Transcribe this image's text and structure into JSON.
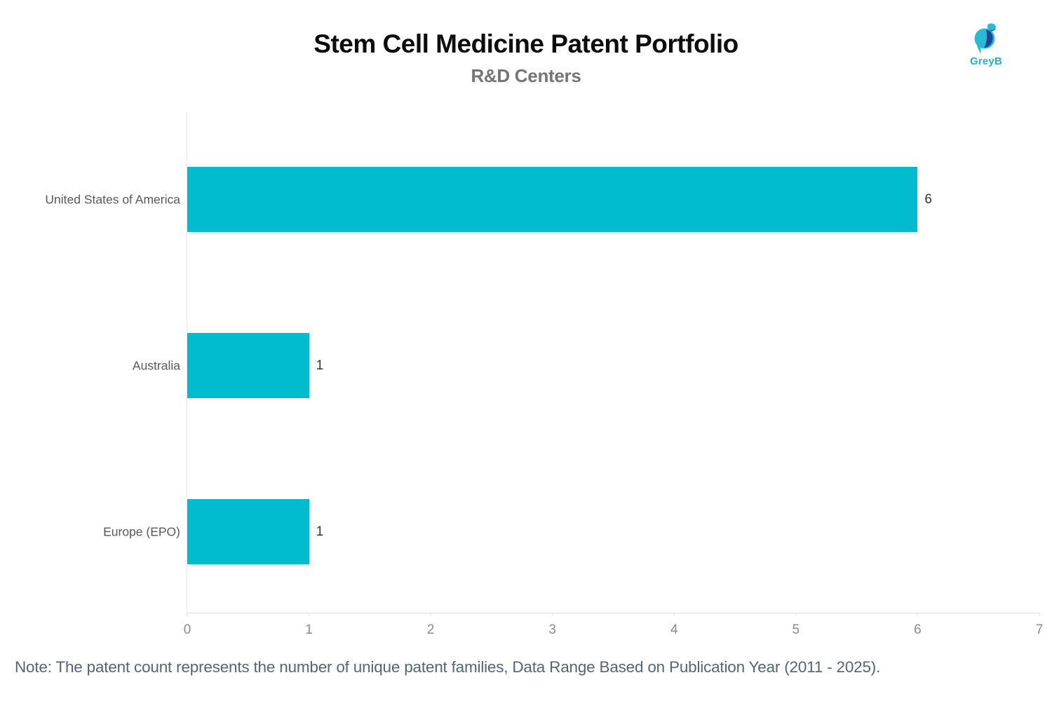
{
  "header": {
    "title": "Stem Cell Medicine Patent Portfolio",
    "subtitle": "R&D Centers"
  },
  "logo": {
    "label": "GreyB",
    "teal": "#27bcd4",
    "navy": "#1f4693",
    "text_color": "#2ab0c9"
  },
  "chart_data": {
    "type": "bar",
    "orientation": "horizontal",
    "title": "Stem Cell Medicine Patent Portfolio",
    "subtitle": "R&D Centers",
    "categories": [
      "United States of America",
      "Australia",
      "Europe (EPO)"
    ],
    "values": [
      6,
      1,
      1
    ],
    "value_labels": [
      "6",
      "1",
      "1"
    ],
    "xlabel": "",
    "ylabel": "",
    "xlim": [
      0,
      7
    ],
    "x_ticks": [
      "0",
      "1",
      "2",
      "3",
      "4",
      "5",
      "6",
      "7"
    ],
    "bar_color": "#00bcce",
    "grid": false,
    "legend": "none"
  },
  "note": "Note: The patent count represents the number of unique patent families, Data Range Based on Publication Year (2011 - 2025)."
}
